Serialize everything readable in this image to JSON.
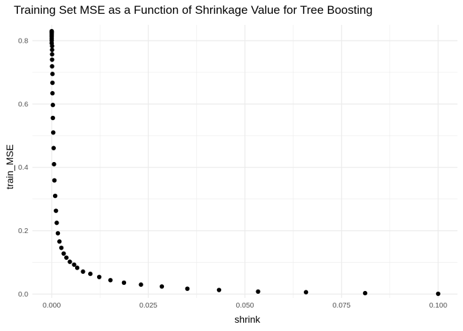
{
  "chart_data": {
    "type": "scatter",
    "title": "Training Set MSE as a Function of Shrinkage Value for Tree Boosting",
    "xlabel": "shrink",
    "ylabel": "train_MSE",
    "xlim": [
      -0.005,
      0.105
    ],
    "ylim": [
      -0.012,
      0.85
    ],
    "x_ticks": [
      0.0,
      0.025,
      0.05,
      0.075,
      0.1
    ],
    "x_tick_labels": [
      "0.000",
      "0.025",
      "0.050",
      "0.075",
      "0.100"
    ],
    "y_ticks": [
      0.0,
      0.2,
      0.4,
      0.6,
      0.8
    ],
    "y_tick_labels": [
      "0.0",
      "0.2",
      "0.4",
      "0.6",
      "0.8"
    ],
    "grid": true,
    "point_color": "#000000",
    "points": [
      {
        "x": 0.0,
        "y": 0.83
      },
      {
        "x": 0.0,
        "y": 0.828
      },
      {
        "x": 0.0,
        "y": 0.826
      },
      {
        "x": 0.0,
        "y": 0.824
      },
      {
        "x": 0.0,
        "y": 0.821
      },
      {
        "x": 0.0,
        "y": 0.817
      },
      {
        "x": 0.0,
        "y": 0.812
      },
      {
        "x": 0.0,
        "y": 0.806
      },
      {
        "x": 0.0,
        "y": 0.8
      },
      {
        "x": 0.0,
        "y": 0.792
      },
      {
        "x": 0.0001,
        "y": 0.783
      },
      {
        "x": 0.0001,
        "y": 0.771
      },
      {
        "x": 0.0001,
        "y": 0.757
      },
      {
        "x": 0.0001,
        "y": 0.74
      },
      {
        "x": 0.0001,
        "y": 0.719
      },
      {
        "x": 0.0002,
        "y": 0.695
      },
      {
        "x": 0.0002,
        "y": 0.667
      },
      {
        "x": 0.0002,
        "y": 0.634
      },
      {
        "x": 0.0003,
        "y": 0.597
      },
      {
        "x": 0.0003,
        "y": 0.556
      },
      {
        "x": 0.0004,
        "y": 0.51
      },
      {
        "x": 0.0005,
        "y": 0.461
      },
      {
        "x": 0.0006,
        "y": 0.41
      },
      {
        "x": 0.0007,
        "y": 0.359
      },
      {
        "x": 0.0009,
        "y": 0.31
      },
      {
        "x": 0.0011,
        "y": 0.263
      },
      {
        "x": 0.0013,
        "y": 0.225
      },
      {
        "x": 0.0016,
        "y": 0.192
      },
      {
        "x": 0.002,
        "y": 0.166
      },
      {
        "x": 0.0025,
        "y": 0.146
      },
      {
        "x": 0.0031,
        "y": 0.128
      },
      {
        "x": 0.0038,
        "y": 0.115
      },
      {
        "x": 0.0047,
        "y": 0.102
      },
      {
        "x": 0.0058,
        "y": 0.093
      },
      {
        "x": 0.0066,
        "y": 0.083
      },
      {
        "x": 0.0081,
        "y": 0.071
      },
      {
        "x": 0.01,
        "y": 0.064
      },
      {
        "x": 0.0123,
        "y": 0.054
      },
      {
        "x": 0.0152,
        "y": 0.044
      },
      {
        "x": 0.0187,
        "y": 0.036
      },
      {
        "x": 0.0231,
        "y": 0.03
      },
      {
        "x": 0.0285,
        "y": 0.024
      },
      {
        "x": 0.0351,
        "y": 0.017
      },
      {
        "x": 0.0433,
        "y": 0.013
      },
      {
        "x": 0.0534,
        "y": 0.008
      },
      {
        "x": 0.0658,
        "y": 0.006
      },
      {
        "x": 0.0811,
        "y": 0.003
      },
      {
        "x": 0.1,
        "y": 0.001
      }
    ]
  }
}
